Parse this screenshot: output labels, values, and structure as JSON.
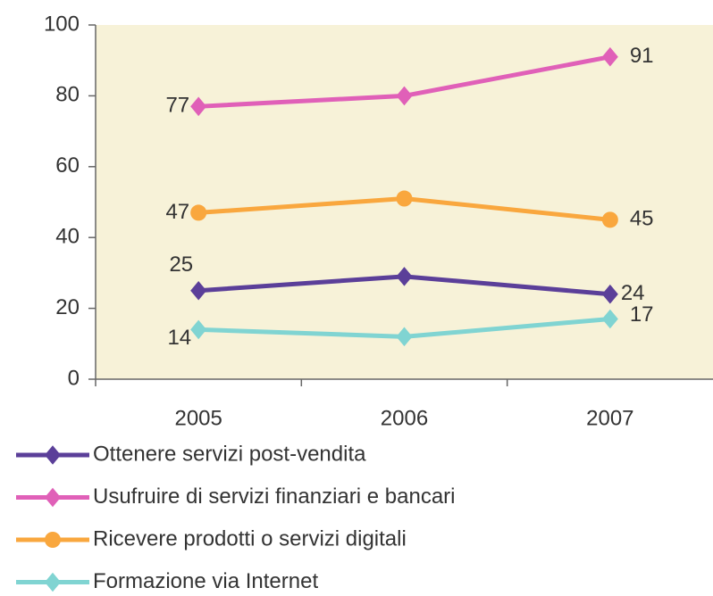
{
  "chart_data": {
    "type": "line",
    "categories": [
      "2005",
      "2006",
      "2007"
    ],
    "series": [
      {
        "name": "Ottenere servizi post-vendita",
        "color": "#5b3f99",
        "marker": "diamond",
        "values": [
          25,
          29,
          24
        ],
        "value_labels": [
          "25",
          null,
          "24"
        ]
      },
      {
        "name": "Usufruire di servizi finanziari e bancari",
        "color": "#e060b8",
        "marker": "diamond",
        "values": [
          77,
          80,
          91
        ],
        "value_labels": [
          "77",
          null,
          "91"
        ]
      },
      {
        "name": "Ricevere prodotti o servizi digitali",
        "color": "#f9a73e",
        "marker": "circle",
        "values": [
          47,
          51,
          45
        ],
        "value_labels": [
          "47",
          null,
          "45"
        ]
      },
      {
        "name": "Formazione via Internet",
        "color": "#80d4d2",
        "marker": "diamond",
        "values": [
          14,
          12,
          17
        ],
        "value_labels": [
          "14",
          null,
          "17"
        ]
      }
    ],
    "ylim": [
      0,
      100
    ],
    "yticks": [
      0,
      20,
      40,
      60,
      80,
      100
    ],
    "background": "#f7f2d8",
    "legend": "bottom"
  }
}
